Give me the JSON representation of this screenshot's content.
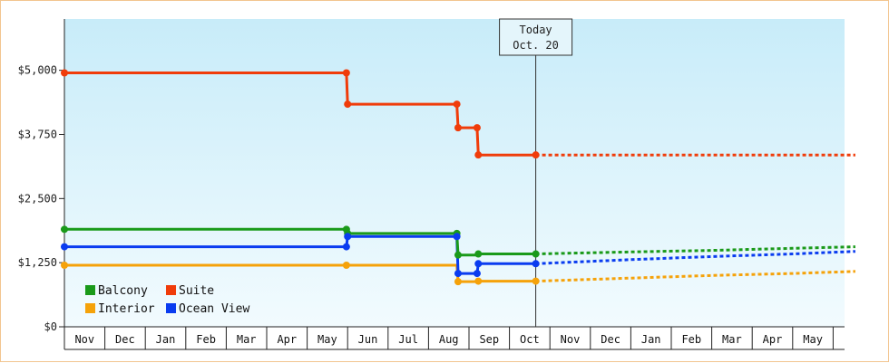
{
  "chart_data": {
    "type": "line",
    "step": true,
    "today": {
      "label_line1": "Today",
      "label_line2": "Oct. 20",
      "month_index": 11.65
    },
    "y_ticks": [
      {
        "value": 0,
        "label": "$0"
      },
      {
        "value": 1250,
        "label": "$1,250"
      },
      {
        "value": 2500,
        "label": "$2,500"
      },
      {
        "value": 3750,
        "label": "$3,750"
      },
      {
        "value": 5000,
        "label": "$5,000"
      }
    ],
    "ylim": [
      0,
      6000
    ],
    "months": [
      "Nov",
      "Dec",
      "Jan",
      "Feb",
      "Mar",
      "Apr",
      "May",
      "Jun",
      "Jul",
      "Aug",
      "Sep",
      "Oct",
      "Nov",
      "Dec",
      "Jan",
      "Feb",
      "Mar",
      "Apr",
      "May"
    ],
    "legend": {
      "position": "bottom-left"
    },
    "series": [
      {
        "name": "Balcony",
        "color": "#1a9a1a",
        "points": [
          [
            0,
            1900
          ],
          [
            6.97,
            1900
          ],
          [
            7.0,
            1820
          ],
          [
            9.7,
            1820
          ],
          [
            9.73,
            1400
          ],
          [
            10.2,
            1400
          ],
          [
            10.23,
            1420
          ],
          [
            11.65,
            1420
          ]
        ],
        "forecast": [
          [
            11.65,
            1420
          ],
          [
            14,
            1460
          ],
          [
            16,
            1490
          ],
          [
            18,
            1530
          ],
          [
            19.55,
            1560
          ]
        ]
      },
      {
        "name": "Suite",
        "color": "#f03c0a",
        "points": [
          [
            0,
            4950
          ],
          [
            6.97,
            4950
          ],
          [
            7.0,
            4340
          ],
          [
            9.7,
            4340
          ],
          [
            9.73,
            3880
          ],
          [
            10.2,
            3880
          ],
          [
            10.23,
            3350
          ],
          [
            11.65,
            3350
          ]
        ],
        "forecast": [
          [
            11.65,
            3350
          ],
          [
            19.55,
            3350
          ]
        ]
      },
      {
        "name": "Interior",
        "color": "#f5a20a",
        "points": [
          [
            0,
            1200
          ],
          [
            6.97,
            1200
          ],
          [
            7.0,
            1200
          ],
          [
            9.7,
            1200
          ],
          [
            9.73,
            880
          ],
          [
            10.2,
            880
          ],
          [
            10.23,
            890
          ],
          [
            11.65,
            890
          ]
        ],
        "forecast": [
          [
            11.65,
            890
          ],
          [
            14,
            950
          ],
          [
            16,
            1000
          ],
          [
            18,
            1040
          ],
          [
            19.55,
            1080
          ]
        ]
      },
      {
        "name": "Ocean View",
        "color": "#0a3cf0",
        "points": [
          [
            0,
            1560
          ],
          [
            6.97,
            1560
          ],
          [
            7.0,
            1760
          ],
          [
            9.7,
            1760
          ],
          [
            9.73,
            1040
          ],
          [
            10.2,
            1040
          ],
          [
            10.23,
            1230
          ],
          [
            11.65,
            1230
          ]
        ],
        "forecast": [
          [
            11.65,
            1230
          ],
          [
            14,
            1310
          ],
          [
            16,
            1370
          ],
          [
            18,
            1420
          ],
          [
            19.55,
            1470
          ]
        ]
      }
    ],
    "markers": [
      {
        "series": 0,
        "x": [
          0,
          6.97,
          7.0,
          9.7,
          9.73,
          10.23,
          11.65
        ]
      },
      {
        "series": 1,
        "x": [
          0,
          6.97,
          7.0,
          9.7,
          9.73,
          10.2,
          10.23,
          11.65
        ]
      },
      {
        "series": 2,
        "x": [
          0,
          6.97,
          9.73,
          10.23,
          11.65
        ]
      },
      {
        "series": 3,
        "x": [
          0,
          6.97,
          7.0,
          9.7,
          9.73,
          10.2,
          10.23,
          11.65
        ]
      }
    ]
  }
}
